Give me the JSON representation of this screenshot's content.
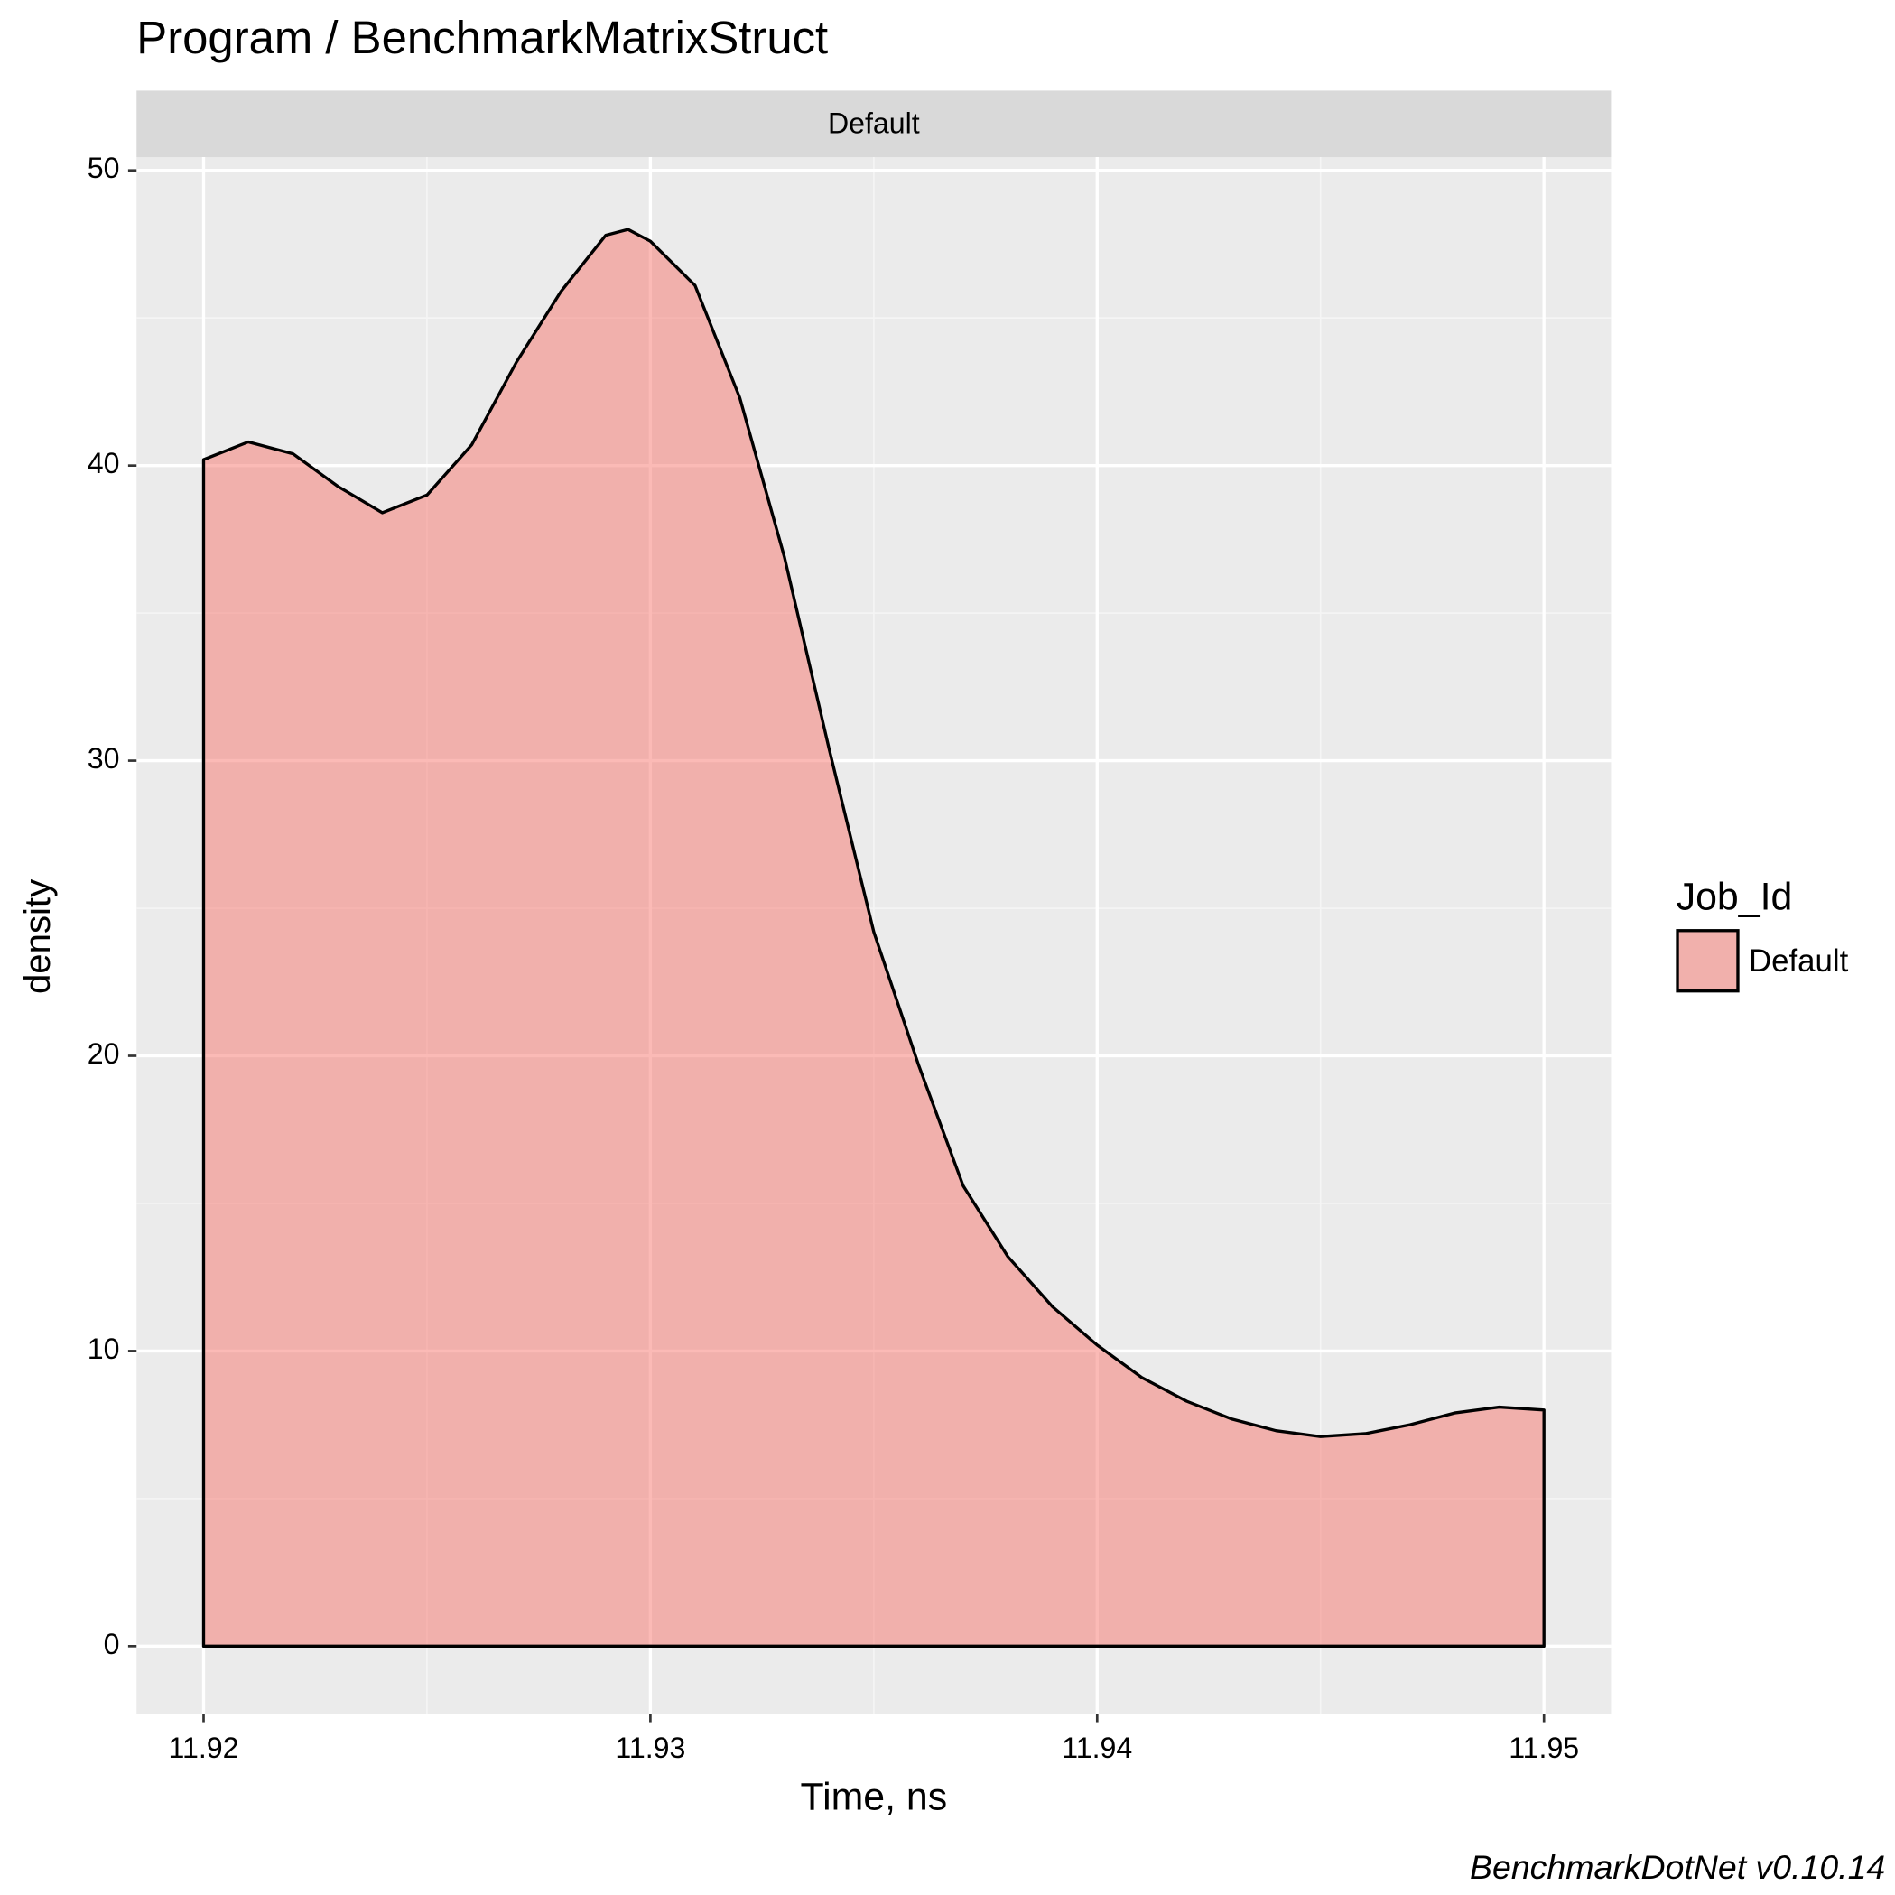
{
  "chart_data": {
    "type": "area",
    "title": "Program / BenchmarkMatrixStruct",
    "facet_label": "Default",
    "x_label": "Time, ns",
    "y_label": "density",
    "legend_title": "Job_Id",
    "caption": "BenchmarkDotNet v0.10.14",
    "x": [
      11.92,
      11.921,
      11.922,
      11.923,
      11.924,
      11.925,
      11.926,
      11.927,
      11.928,
      11.929,
      11.9295,
      11.93,
      11.931,
      11.932,
      11.933,
      11.934,
      11.935,
      11.936,
      11.937,
      11.938,
      11.939,
      11.94,
      11.941,
      11.942,
      11.943,
      11.944,
      11.945,
      11.946,
      11.947,
      11.948,
      11.949,
      11.95
    ],
    "series": [
      {
        "name": "Default",
        "color": "#F8766D",
        "opacity": 0.5,
        "values": [
          40.2,
          40.8,
          40.4,
          39.3,
          38.4,
          39.0,
          40.7,
          43.5,
          45.9,
          47.8,
          48.0,
          47.6,
          46.1,
          42.3,
          36.9,
          30.4,
          24.2,
          19.7,
          15.6,
          13.2,
          11.5,
          10.2,
          9.1,
          8.3,
          7.7,
          7.3,
          7.1,
          7.2,
          7.5,
          7.9,
          8.1,
          8.0
        ]
      }
    ],
    "xlim": [
      11.9185,
      11.9515
    ],
    "ylim": [
      -2.29,
      50.45
    ],
    "xticks": [
      11.92,
      11.93,
      11.94,
      11.95
    ],
    "yticks": [
      0,
      10,
      20,
      30,
      40,
      50
    ],
    "grid": true,
    "legend_position": "right"
  }
}
